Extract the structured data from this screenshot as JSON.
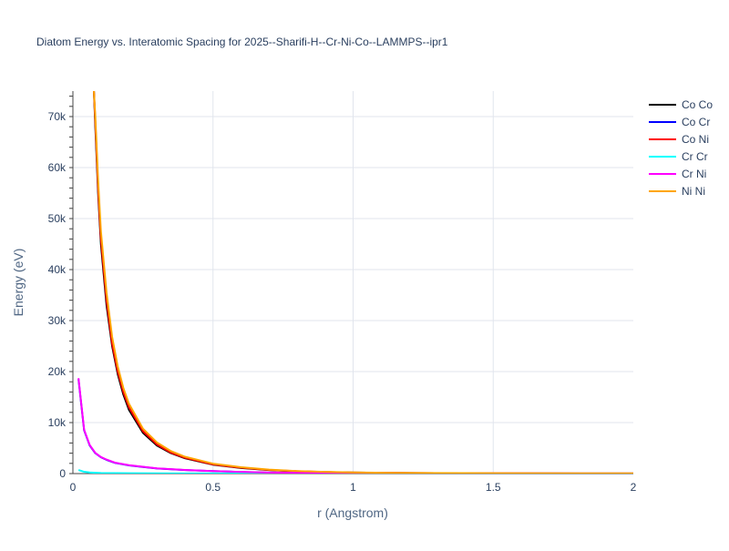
{
  "chart_data": {
    "type": "line",
    "title": "Diatom Energy vs. Interatomic Spacing for 2025--Sharifi-H--Cr-Ni-Co--LAMMPS--ipr1",
    "xlabel": "r (Angstrom)",
    "ylabel": "Energy (eV)",
    "xlim": [
      0,
      2
    ],
    "ylim": [
      0,
      75000
    ],
    "x_ticks": [
      0,
      0.5,
      1,
      1.5,
      2
    ],
    "x_tick_labels": [
      "0",
      "0.5",
      "1",
      "1.5",
      "2"
    ],
    "y_ticks": [
      0,
      10000,
      20000,
      30000,
      40000,
      50000,
      60000,
      70000
    ],
    "y_tick_labels": [
      "0",
      "10k",
      "20k",
      "30k",
      "40k",
      "50k",
      "60k",
      "70k"
    ],
    "grid": true,
    "legend_position": "top-right",
    "series": [
      {
        "name": "Co Co",
        "color": "#000000",
        "x": [
          0.075,
          0.08,
          0.09,
          0.1,
          0.12,
          0.14,
          0.16,
          0.18,
          0.2,
          0.25,
          0.3,
          0.35,
          0.4,
          0.5,
          0.6,
          0.7,
          0.8,
          0.9,
          1.0,
          1.2,
          1.5,
          2.0
        ],
        "y": [
          75000,
          68000,
          55000,
          45000,
          33000,
          25000,
          19500,
          15500,
          12500,
          8000,
          5500,
          4000,
          3000,
          1750,
          1100,
          700,
          450,
          300,
          200,
          110,
          50,
          15
        ]
      },
      {
        "name": "Co Cr",
        "color": "#0000ff",
        "x": [
          0.02,
          0.04,
          0.06,
          0.08,
          0.1,
          0.12,
          0.15,
          0.2,
          0.25,
          0.3,
          0.4,
          0.5,
          0.6,
          0.7,
          0.8,
          1.0,
          1.2,
          1.5,
          2.0
        ],
        "y": [
          18500,
          8500,
          5500,
          4000,
          3200,
          2700,
          2100,
          1600,
          1300,
          1000,
          700,
          480,
          320,
          200,
          130,
          60,
          30,
          12,
          5
        ]
      },
      {
        "name": "Co Ni",
        "color": "#ff0000",
        "x": [
          0.075,
          0.08,
          0.09,
          0.1,
          0.12,
          0.14,
          0.16,
          0.18,
          0.2,
          0.25,
          0.3,
          0.35,
          0.4,
          0.5,
          0.6,
          0.7,
          0.8,
          0.9,
          1.0,
          1.2,
          1.5,
          2.0
        ],
        "y": [
          75000,
          69000,
          56000,
          46000,
          34000,
          25500,
          20000,
          16000,
          13000,
          8300,
          5700,
          4100,
          3100,
          1800,
          1150,
          720,
          470,
          310,
          210,
          115,
          55,
          16
        ]
      },
      {
        "name": "Cr Cr",
        "color": "#00ffff",
        "x": [
          0.02,
          0.04,
          0.06,
          0.08,
          0.1,
          0.15,
          0.2,
          0.3,
          0.4,
          0.5,
          0.7,
          1.0,
          1.5,
          2.0
        ],
        "y": [
          700,
          350,
          220,
          160,
          120,
          80,
          60,
          40,
          30,
          22,
          12,
          6,
          3,
          1
        ]
      },
      {
        "name": "Cr Ni",
        "color": "#ff00ff",
        "x": [
          0.02,
          0.04,
          0.06,
          0.08,
          0.1,
          0.12,
          0.15,
          0.2,
          0.25,
          0.3,
          0.4,
          0.5,
          0.6,
          0.7,
          0.8,
          1.0,
          1.2,
          1.5,
          2.0
        ],
        "y": [
          18700,
          8600,
          5600,
          4050,
          3250,
          2750,
          2150,
          1650,
          1330,
          1030,
          720,
          500,
          330,
          210,
          135,
          62,
          31,
          13,
          5
        ]
      },
      {
        "name": "Ni Ni",
        "color": "#ffa500",
        "x": [
          0.075,
          0.08,
          0.09,
          0.1,
          0.12,
          0.14,
          0.16,
          0.18,
          0.2,
          0.25,
          0.3,
          0.35,
          0.4,
          0.5,
          0.6,
          0.7,
          0.8,
          0.9,
          1.0,
          1.2,
          1.5,
          2.0
        ],
        "y": [
          75000,
          70000,
          57500,
          47500,
          35500,
          26800,
          21000,
          16800,
          13700,
          8800,
          6100,
          4400,
          3300,
          1950,
          1250,
          780,
          500,
          330,
          220,
          120,
          58,
          17
        ]
      }
    ]
  }
}
